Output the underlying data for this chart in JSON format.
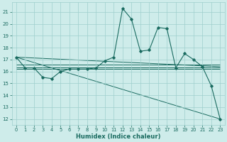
{
  "xlabel": "Humidex (Indice chaleur)",
  "bg_color": "#ceecea",
  "grid_color": "#9ecfcc",
  "line_color": "#1a6b60",
  "xlim": [
    -0.5,
    23.5
  ],
  "ylim": [
    11.5,
    21.8
  ],
  "yticks": [
    12,
    13,
    14,
    15,
    16,
    17,
    18,
    19,
    20,
    21
  ],
  "xticks": [
    0,
    1,
    2,
    3,
    4,
    5,
    6,
    7,
    8,
    9,
    10,
    11,
    12,
    13,
    14,
    15,
    16,
    17,
    18,
    19,
    20,
    21,
    22,
    23
  ],
  "main_x": [
    0,
    1,
    2,
    3,
    4,
    5,
    6,
    7,
    8,
    9,
    10,
    11,
    12,
    13,
    14,
    15,
    16,
    17,
    18,
    19,
    20,
    21,
    22,
    23
  ],
  "main_y": [
    17.2,
    16.3,
    16.3,
    15.5,
    15.4,
    16.0,
    16.2,
    16.2,
    16.2,
    16.3,
    16.9,
    17.2,
    21.3,
    20.4,
    17.7,
    17.8,
    19.7,
    19.6,
    16.3,
    17.5,
    17.0,
    16.4,
    14.8,
    12.0
  ],
  "trend_lines": [
    {
      "x": [
        0,
        23
      ],
      "y": [
        17.2,
        16.4
      ]
    },
    {
      "x": [
        0,
        23
      ],
      "y": [
        16.55,
        16.55
      ]
    },
    {
      "x": [
        0,
        23
      ],
      "y": [
        16.35,
        16.35
      ]
    },
    {
      "x": [
        0,
        23
      ],
      "y": [
        16.2,
        16.2
      ]
    },
    {
      "x": [
        0,
        23
      ],
      "y": [
        17.2,
        12.0
      ]
    }
  ]
}
